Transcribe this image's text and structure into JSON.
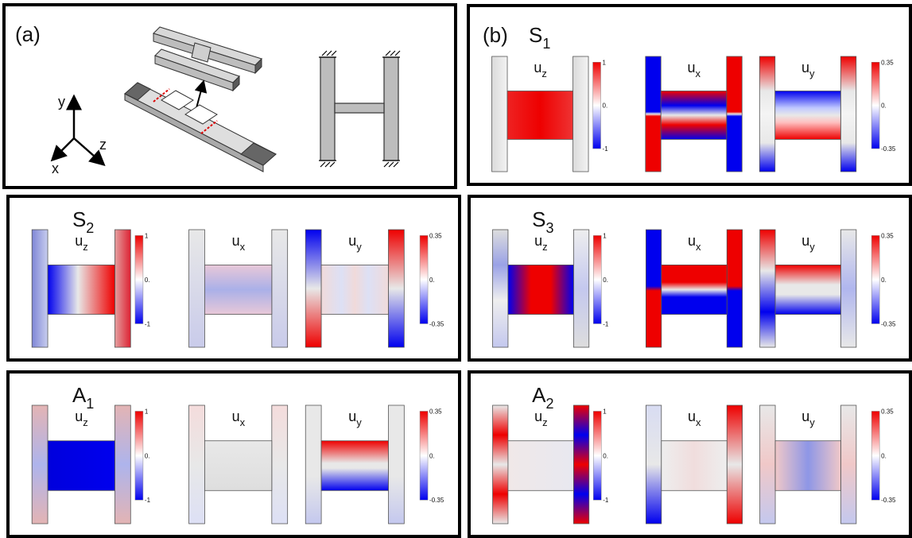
{
  "panel_a": {
    "label": "(a)",
    "axes": {
      "y": "y",
      "z": "z",
      "x": "x"
    }
  },
  "panel_b": {
    "label": "(b)"
  },
  "modes": [
    {
      "id": "S1",
      "title": "S",
      "sub": "1",
      "maps": [
        {
          "field": "u",
          "comp": "z",
          "colorbar": {
            "max": "1",
            "mid": "0.",
            "min": "-1"
          }
        },
        {
          "field": "u",
          "comp": "x"
        },
        {
          "field": "u",
          "comp": "y",
          "colorbar": {
            "max": "0.35",
            "mid": "0.",
            "min": "-0.35"
          }
        }
      ]
    },
    {
      "id": "S2",
      "title": "S",
      "sub": "2",
      "maps": [
        {
          "field": "u",
          "comp": "z",
          "colorbar": {
            "max": "1",
            "mid": "0.",
            "min": "-1"
          }
        },
        {
          "field": "u",
          "comp": "x"
        },
        {
          "field": "u",
          "comp": "y",
          "colorbar": {
            "max": "0.35",
            "mid": "0.",
            "min": "-0.35"
          }
        }
      ]
    },
    {
      "id": "S3",
      "title": "S",
      "sub": "3",
      "maps": [
        {
          "field": "u",
          "comp": "z",
          "colorbar": {
            "max": "1",
            "mid": "0.",
            "min": "-1"
          }
        },
        {
          "field": "u",
          "comp": "x"
        },
        {
          "field": "u",
          "comp": "y",
          "colorbar": {
            "max": "0.35",
            "mid": "0.",
            "min": "-0.35"
          }
        }
      ]
    },
    {
      "id": "A1",
      "title": "A",
      "sub": "1",
      "maps": [
        {
          "field": "u",
          "comp": "z",
          "colorbar": {
            "max": "1",
            "mid": "0.",
            "min": "-1"
          }
        },
        {
          "field": "u",
          "comp": "x"
        },
        {
          "field": "u",
          "comp": "y",
          "colorbar": {
            "max": "0.35",
            "mid": "0.",
            "min": "-0.35"
          }
        }
      ]
    },
    {
      "id": "A2",
      "title": "A",
      "sub": "2",
      "maps": [
        {
          "field": "u",
          "comp": "z",
          "colorbar": {
            "max": "1",
            "mid": "0.",
            "min": "-1"
          }
        },
        {
          "field": "u",
          "comp": "x"
        },
        {
          "field": "u",
          "comp": "y",
          "colorbar": {
            "max": "0.35",
            "mid": "0.",
            "min": "-0.35"
          }
        }
      ]
    }
  ],
  "colors": {
    "positive": "#ee0000",
    "neutral": "#e8e8e8",
    "negative": "#0000ee",
    "beam": "#bdbdbd"
  }
}
